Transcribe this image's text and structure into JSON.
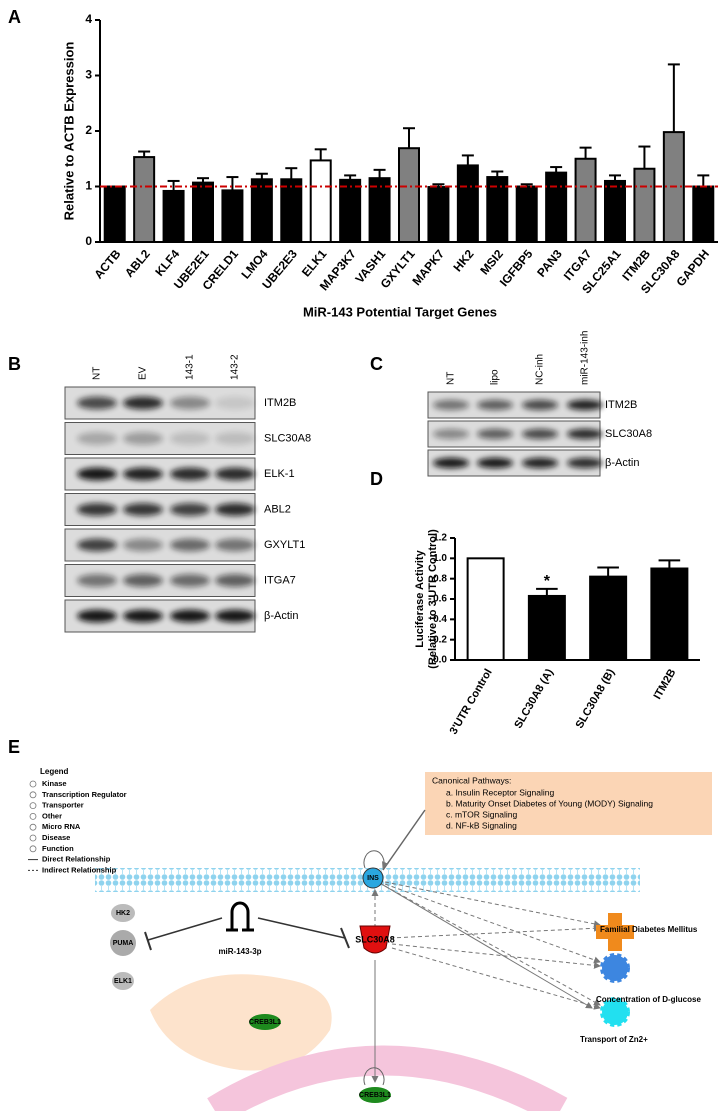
{
  "chart_data": [
    {
      "label": "A",
      "type": "bar",
      "ylabel": "Relative to ACTB Expression",
      "xlabel": "MiR-143 Potential Target Genes",
      "categories": [
        "ACTB",
        "ABL2",
        "KLF4",
        "UBE2E1",
        "CRELD1",
        "LMO4",
        "UBE2E3",
        "ELK1",
        "MAP3K7",
        "VASH1",
        "GXYLT1",
        "MAPK7",
        "HK2",
        "MSI2",
        "IGFBP5",
        "PAN3",
        "ITGA7",
        "SLC25A1",
        "ITM2B",
        "SLC30A8",
        "GAPDH"
      ],
      "values": [
        1.0,
        1.53,
        0.92,
        1.07,
        0.93,
        1.13,
        1.13,
        1.47,
        1.12,
        1.15,
        1.69,
        0.99,
        1.38,
        1.17,
        1.0,
        1.25,
        1.5,
        1.1,
        1.32,
        1.98,
        1.0
      ],
      "errors": [
        0,
        0.1,
        0.18,
        0.08,
        0.24,
        0.1,
        0.2,
        0.2,
        0.08,
        0.15,
        0.36,
        0.05,
        0.18,
        0.1,
        0.04,
        0.1,
        0.2,
        0.1,
        0.4,
        1.22,
        0.2
      ],
      "colors": [
        "#000000",
        "#808080",
        "#000000",
        "#000000",
        "#000000",
        "#000000",
        "#000000",
        "#ffffff",
        "#000000",
        "#000000",
        "#808080",
        "#000000",
        "#000000",
        "#000000",
        "#000000",
        "#000000",
        "#808080",
        "#000000",
        "#808080",
        "#808080",
        "#000000"
      ],
      "reference_line": 1,
      "reference_color": "#cc0000",
      "ylim": [
        0,
        4
      ],
      "yticks": [
        0,
        1,
        2,
        3,
        4
      ]
    },
    {
      "label": "D",
      "type": "bar",
      "ylabel": [
        "Luciferase Activity",
        "(Relative to 3'UTR Control)"
      ],
      "categories": [
        "3'UTR Control",
        "SLC30A8 (A)",
        "SLC30A8 (B)",
        "ITM2B"
      ],
      "values": [
        1.0,
        0.63,
        0.82,
        0.9
      ],
      "errors": [
        0,
        0.07,
        0.09,
        0.08
      ],
      "colors": [
        "#ffffff",
        "#000000",
        "#000000",
        "#000000"
      ],
      "markers": [
        null,
        "*",
        null,
        null
      ],
      "ylim": [
        0,
        1.2
      ],
      "yticks": [
        {
          "value": 0,
          "label": "0.0"
        },
        0.2,
        0.4,
        0.6,
        0.8,
        {
          "value": 1,
          "label": "1.0"
        },
        1.2
      ]
    }
  ],
  "blots": [
    {
      "label": "B",
      "lanes": [
        "NT",
        "EV",
        "143-1",
        "143-2"
      ],
      "rows": [
        "ITM2B",
        "SLC30A8",
        "ELK-1",
        "ABL2",
        "GXYLT1",
        "ITGA7",
        "β-Actin"
      ]
    },
    {
      "label": "C",
      "lanes": [
        "NT",
        "lipo",
        "NC-inh",
        "miR-143-inh"
      ],
      "rows": [
        "ITM2B",
        "SLC30A8",
        "β-Actin"
      ]
    }
  ],
  "pathway": {
    "label": "E",
    "legend": {
      "title": "Legend",
      "items": [
        "Kinase",
        "Transcription Regulator",
        "Transporter",
        "Other",
        "Micro RNA",
        "Disease",
        "Function",
        "Direct Relationship",
        "Indirect Relationship"
      ]
    },
    "canonical": {
      "title": "Canonical Pathways:",
      "items": [
        "a. Insulin Receptor Signaling",
        "b. Maturity Onset Diabetes of Young (MODY) Signaling",
        "c. mTOR Signaling",
        "d. NF-kB Signaling"
      ]
    },
    "nodes": [
      "INS",
      "SLC30A8",
      "miR-143-3p",
      "HK2",
      "PUMA",
      "ELK1",
      "CREB3L1",
      "CREB3L1",
      "Familial Diabetes Mellitus",
      "Concentration of D-glucose",
      "Transport of Zn2+"
    ]
  }
}
